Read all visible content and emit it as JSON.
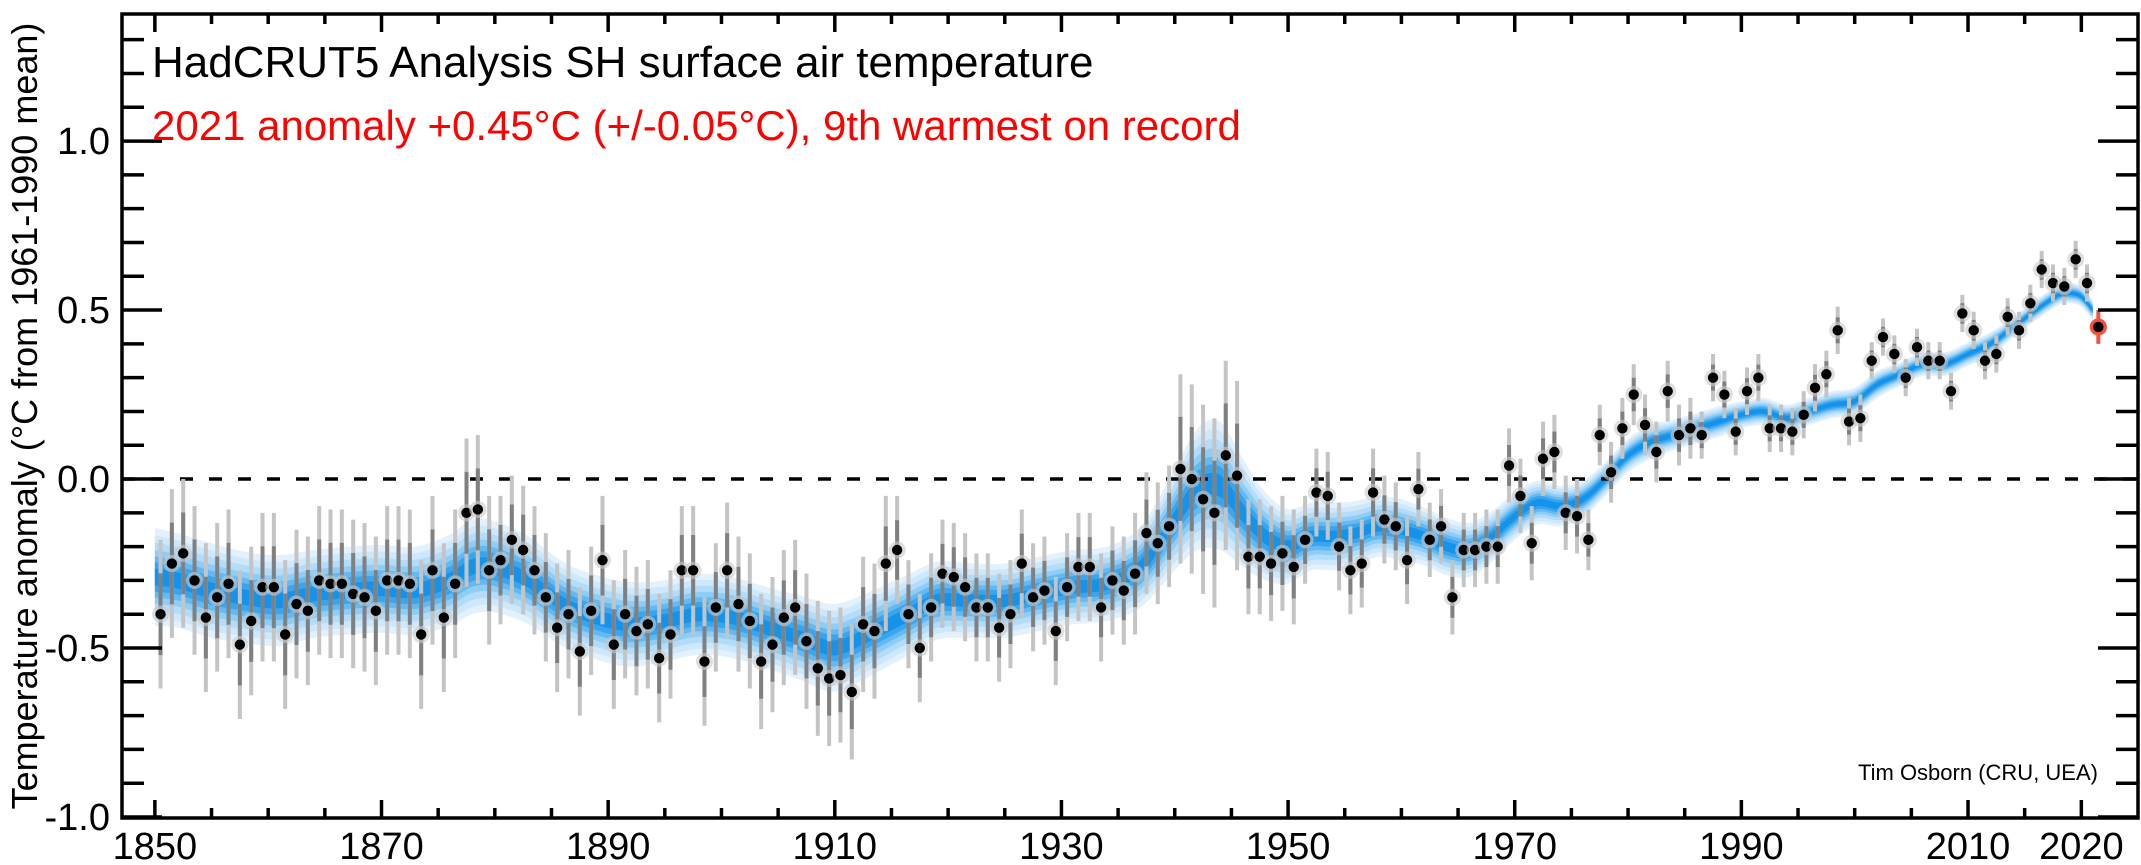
{
  "header": {
    "title": "HadCRUT5 Analysis SH surface air temperature",
    "subtitle": "2021 anomaly +0.45°C (+/-0.05°C), 9th warmest on record",
    "subtitle_color": "#ff0000"
  },
  "credit": "Tim Osborn (CRU, UEA)",
  "axes": {
    "y_label": "Temperature anomaly (°C from 1961-1990 mean)",
    "x_tick_labels": [
      "1850",
      "1870",
      "1890",
      "1910",
      "1930",
      "1950",
      "1970",
      "1990",
      "2010",
      "2020"
    ],
    "y_tick_labels": [
      "-1.0",
      "-0.5",
      "0.0",
      "0.5",
      "1.0"
    ]
  },
  "chart_data": {
    "type": "scatter",
    "title": "HadCRUT5 Analysis SH surface air temperature",
    "annotation": "2021 anomaly +0.45°C (+/-0.05°C), 9th warmest on record",
    "xlabel": "",
    "ylabel": "Temperature anomaly (°C from 1961-1990 mean)",
    "xlim": [
      1847.1,
      2025.0
    ],
    "ylim": [
      -1.003,
      1.376
    ],
    "x_major_ticks": [
      1850,
      1870,
      1890,
      1910,
      1930,
      1950,
      1970,
      1990,
      2010,
      2020
    ],
    "x_minor_tick_step": 5,
    "y_major_ticks": [
      -1.0,
      -0.5,
      0.0,
      0.5,
      1.0
    ],
    "y_minor_tick_step": 0.1,
    "zero_line": true,
    "legend": "none",
    "grid": false,
    "start_year": 1850,
    "end_year": 2021,
    "values": [
      -0.4,
      -0.25,
      -0.22,
      -0.3,
      -0.41,
      -0.35,
      -0.31,
      -0.49,
      -0.42,
      -0.32,
      -0.32,
      -0.46,
      -0.37,
      -0.39,
      -0.3,
      -0.31,
      -0.31,
      -0.34,
      -0.35,
      -0.39,
      -0.3,
      -0.3,
      -0.31,
      -0.46,
      -0.27,
      -0.41,
      -0.31,
      -0.1,
      -0.09,
      -0.27,
      -0.24,
      -0.18,
      -0.21,
      -0.27,
      -0.35,
      -0.44,
      -0.4,
      -0.51,
      -0.39,
      -0.24,
      -0.49,
      -0.4,
      -0.45,
      -0.43,
      -0.53,
      -0.46,
      -0.27,
      -0.27,
      -0.54,
      -0.38,
      -0.27,
      -0.37,
      -0.42,
      -0.54,
      -0.49,
      -0.41,
      -0.38,
      -0.48,
      -0.56,
      -0.59,
      -0.58,
      -0.63,
      -0.43,
      -0.45,
      -0.25,
      -0.21,
      -0.4,
      -0.5,
      -0.38,
      -0.28,
      -0.29,
      -0.32,
      -0.38,
      -0.38,
      -0.44,
      -0.4,
      -0.25,
      -0.35,
      -0.33,
      -0.45,
      -0.32,
      -0.26,
      -0.26,
      -0.38,
      -0.3,
      -0.33,
      -0.28,
      -0.16,
      -0.19,
      -0.14,
      0.03,
      0.0,
      -0.06,
      -0.1,
      0.07,
      0.01,
      -0.23,
      -0.23,
      -0.25,
      -0.22,
      -0.26,
      -0.18,
      -0.04,
      -0.05,
      -0.2,
      -0.27,
      -0.25,
      -0.04,
      -0.12,
      -0.14,
      -0.24,
      -0.03,
      -0.18,
      -0.14,
      -0.35,
      -0.21,
      -0.21,
      -0.2,
      -0.2,
      0.04,
      -0.05,
      -0.19,
      0.06,
      0.08,
      -0.1,
      -0.11,
      -0.18,
      0.13,
      0.02,
      0.15,
      0.25,
      0.16,
      0.08,
      0.26,
      0.13,
      0.15,
      0.13,
      0.3,
      0.25,
      0.14,
      0.26,
      0.3,
      0.15,
      0.15,
      0.14,
      0.19,
      0.27,
      0.31,
      0.44,
      0.17,
      0.18,
      0.35,
      0.42,
      0.37,
      0.3,
      0.39,
      0.35,
      0.35,
      0.26,
      0.49,
      0.44,
      0.35,
      0.37,
      0.48,
      0.44,
      0.52,
      0.62,
      0.58,
      0.57,
      0.65,
      0.58,
      0.45
    ],
    "uncertainty_segments": [
      {
        "from": 1850,
        "to": 1879,
        "half_width": 0.22
      },
      {
        "from": 1880,
        "to": 1899,
        "half_width": 0.19
      },
      {
        "from": 1900,
        "to": 1914,
        "half_width": 0.2
      },
      {
        "from": 1915,
        "to": 1935,
        "half_width": 0.16
      },
      {
        "from": 1936,
        "to": 1939,
        "half_width": 0.18
      },
      {
        "from": 1940,
        "to": 1945,
        "half_width": 0.28
      },
      {
        "from": 1946,
        "to": 1950,
        "half_width": 0.17
      },
      {
        "from": 1951,
        "to": 1960,
        "half_width": 0.13
      },
      {
        "from": 1961,
        "to": 1975,
        "half_width": 0.11
      },
      {
        "from": 1976,
        "to": 1985,
        "half_width": 0.09
      },
      {
        "from": 1986,
        "to": 2000,
        "half_width": 0.07
      },
      {
        "from": 2001,
        "to": 2020,
        "half_width": 0.055
      },
      {
        "from": 2021,
        "to": 2021,
        "half_width": 0.05
      }
    ],
    "smoothed_band": [
      [
        1850,
        -0.29,
        0.145
      ],
      [
        1852,
        -0.3,
        0.14
      ],
      [
        1855,
        -0.33,
        0.14
      ],
      [
        1858,
        -0.35,
        0.135
      ],
      [
        1861,
        -0.36,
        0.135
      ],
      [
        1864,
        -0.34,
        0.13
      ],
      [
        1867,
        -0.33,
        0.13
      ],
      [
        1870,
        -0.325,
        0.13
      ],
      [
        1873,
        -0.33,
        0.13
      ],
      [
        1876,
        -0.3,
        0.135
      ],
      [
        1878,
        -0.26,
        0.14
      ],
      [
        1880,
        -0.26,
        0.135
      ],
      [
        1883,
        -0.3,
        0.13
      ],
      [
        1886,
        -0.37,
        0.125
      ],
      [
        1889,
        -0.41,
        0.125
      ],
      [
        1892,
        -0.43,
        0.125
      ],
      [
        1895,
        -0.42,
        0.12
      ],
      [
        1898,
        -0.4,
        0.12
      ],
      [
        1901,
        -0.41,
        0.12
      ],
      [
        1904,
        -0.44,
        0.12
      ],
      [
        1907,
        -0.47,
        0.125
      ],
      [
        1910,
        -0.5,
        0.13
      ],
      [
        1913,
        -0.46,
        0.125
      ],
      [
        1916,
        -0.41,
        0.12
      ],
      [
        1919,
        -0.36,
        0.115
      ],
      [
        1922,
        -0.36,
        0.11
      ],
      [
        1925,
        -0.36,
        0.11
      ],
      [
        1928,
        -0.34,
        0.11
      ],
      [
        1931,
        -0.32,
        0.11
      ],
      [
        1934,
        -0.31,
        0.11
      ],
      [
        1937,
        -0.26,
        0.12
      ],
      [
        1940,
        -0.12,
        0.15
      ],
      [
        1942,
        -0.03,
        0.18
      ],
      [
        1944,
        -0.02,
        0.19
      ],
      [
        1946,
        -0.1,
        0.16
      ],
      [
        1948,
        -0.17,
        0.13
      ],
      [
        1950,
        -0.2,
        0.11
      ],
      [
        1952,
        -0.17,
        0.1
      ],
      [
        1954,
        -0.17,
        0.1
      ],
      [
        1956,
        -0.16,
        0.095
      ],
      [
        1958,
        -0.14,
        0.09
      ],
      [
        1960,
        -0.15,
        0.09
      ],
      [
        1962,
        -0.17,
        0.085
      ],
      [
        1964,
        -0.2,
        0.085
      ],
      [
        1966,
        -0.21,
        0.08
      ],
      [
        1968,
        -0.17,
        0.075
      ],
      [
        1970,
        -0.11,
        0.07
      ],
      [
        1972,
        -0.07,
        0.065
      ],
      [
        1974,
        -0.08,
        0.06
      ],
      [
        1976,
        -0.06,
        0.055
      ],
      [
        1978,
        0.0,
        0.05
      ],
      [
        1980,
        0.07,
        0.05
      ],
      [
        1982,
        0.11,
        0.05
      ],
      [
        1984,
        0.13,
        0.045
      ],
      [
        1986,
        0.15,
        0.045
      ],
      [
        1988,
        0.17,
        0.045
      ],
      [
        1990,
        0.19,
        0.04
      ],
      [
        1992,
        0.2,
        0.04
      ],
      [
        1994,
        0.18,
        0.04
      ],
      [
        1996,
        0.2,
        0.04
      ],
      [
        1998,
        0.22,
        0.04
      ],
      [
        2000,
        0.23,
        0.04
      ],
      [
        2002,
        0.28,
        0.04
      ],
      [
        2004,
        0.31,
        0.035
      ],
      [
        2006,
        0.34,
        0.035
      ],
      [
        2008,
        0.34,
        0.035
      ],
      [
        2010,
        0.37,
        0.035
      ],
      [
        2012,
        0.4,
        0.035
      ],
      [
        2014,
        0.45,
        0.03
      ],
      [
        2016,
        0.5,
        0.03
      ],
      [
        2018,
        0.545,
        0.03
      ],
      [
        2019,
        0.55,
        0.03
      ],
      [
        2020,
        0.54,
        0.03
      ],
      [
        2021,
        0.5,
        0.03
      ]
    ],
    "highlight": {
      "year": 2021,
      "value": 0.45,
      "half_width": 0.05,
      "color": "#f4503c",
      "note": "9th warmest on record"
    },
    "colors": {
      "point": "#000000",
      "point_halo": "#c9c9c9",
      "errorbar_outer": "#c4c4c4",
      "errorbar_inner": "#808080",
      "band_layers": [
        "#e2f1fc",
        "#cde8fa",
        "#b2dcf9",
        "#8ecdf6",
        "#63b9f2",
        "#38a5ee",
        "#1593ea"
      ],
      "zero_line": "#000000",
      "frame": "#000000",
      "subtitle": "#ff0000"
    }
  }
}
